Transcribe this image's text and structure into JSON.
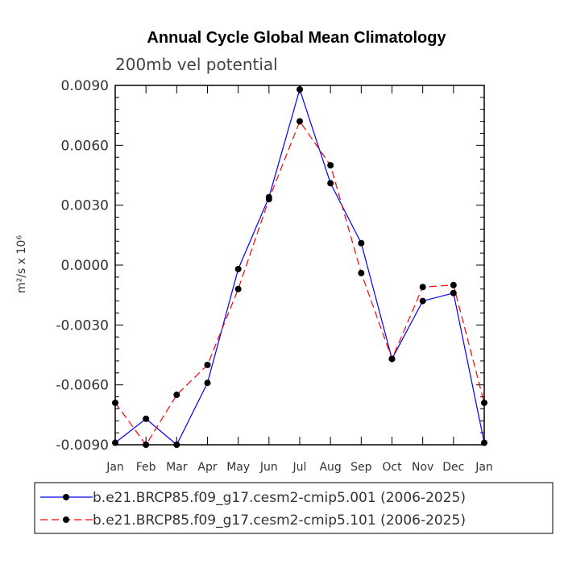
{
  "chart_data": {
    "type": "line",
    "title": "Annual Cycle Global Mean Climatology",
    "subtitle": "200mb vel potential",
    "ylabel": "m²/s x 10⁶",
    "xlabel": "",
    "categories": [
      "Jan",
      "Feb",
      "Mar",
      "Apr",
      "May",
      "Jun",
      "Jul",
      "Aug",
      "Sep",
      "Oct",
      "Nov",
      "Dec",
      "Jan"
    ],
    "ylim": [
      -0.009,
      0.009
    ],
    "yticks": [
      "-0.0090",
      "-0.0060",
      "-0.0030",
      "0.0000",
      "0.0030",
      "0.0060",
      "0.0090"
    ],
    "ytick_values": [
      -0.009,
      -0.006,
      -0.003,
      0.0,
      0.003,
      0.006,
      0.009
    ],
    "grid": false,
    "legend_position": "bottom",
    "series": [
      {
        "name": "b.e21.BRCP85.f09_g17.cesm2-cmip5.001 (2006-2025)",
        "color": "#0000ff",
        "dash": "solid",
        "values": [
          -0.0089,
          -0.0077,
          -0.009,
          -0.0059,
          -0.0002,
          0.0034,
          0.0088,
          0.0041,
          0.0011,
          -0.0047,
          -0.0018,
          -0.0014,
          -0.0089
        ]
      },
      {
        "name": "b.e21.BRCP85.f09_g17.cesm2-cmip5.101 (2006-2025)",
        "color": "#ff0000",
        "dash": "dashed",
        "values": [
          -0.0069,
          -0.009,
          -0.0065,
          -0.005,
          -0.0012,
          0.0033,
          0.0072,
          0.005,
          -0.0004,
          -0.0047,
          -0.0011,
          -0.001,
          -0.0069
        ]
      }
    ]
  }
}
